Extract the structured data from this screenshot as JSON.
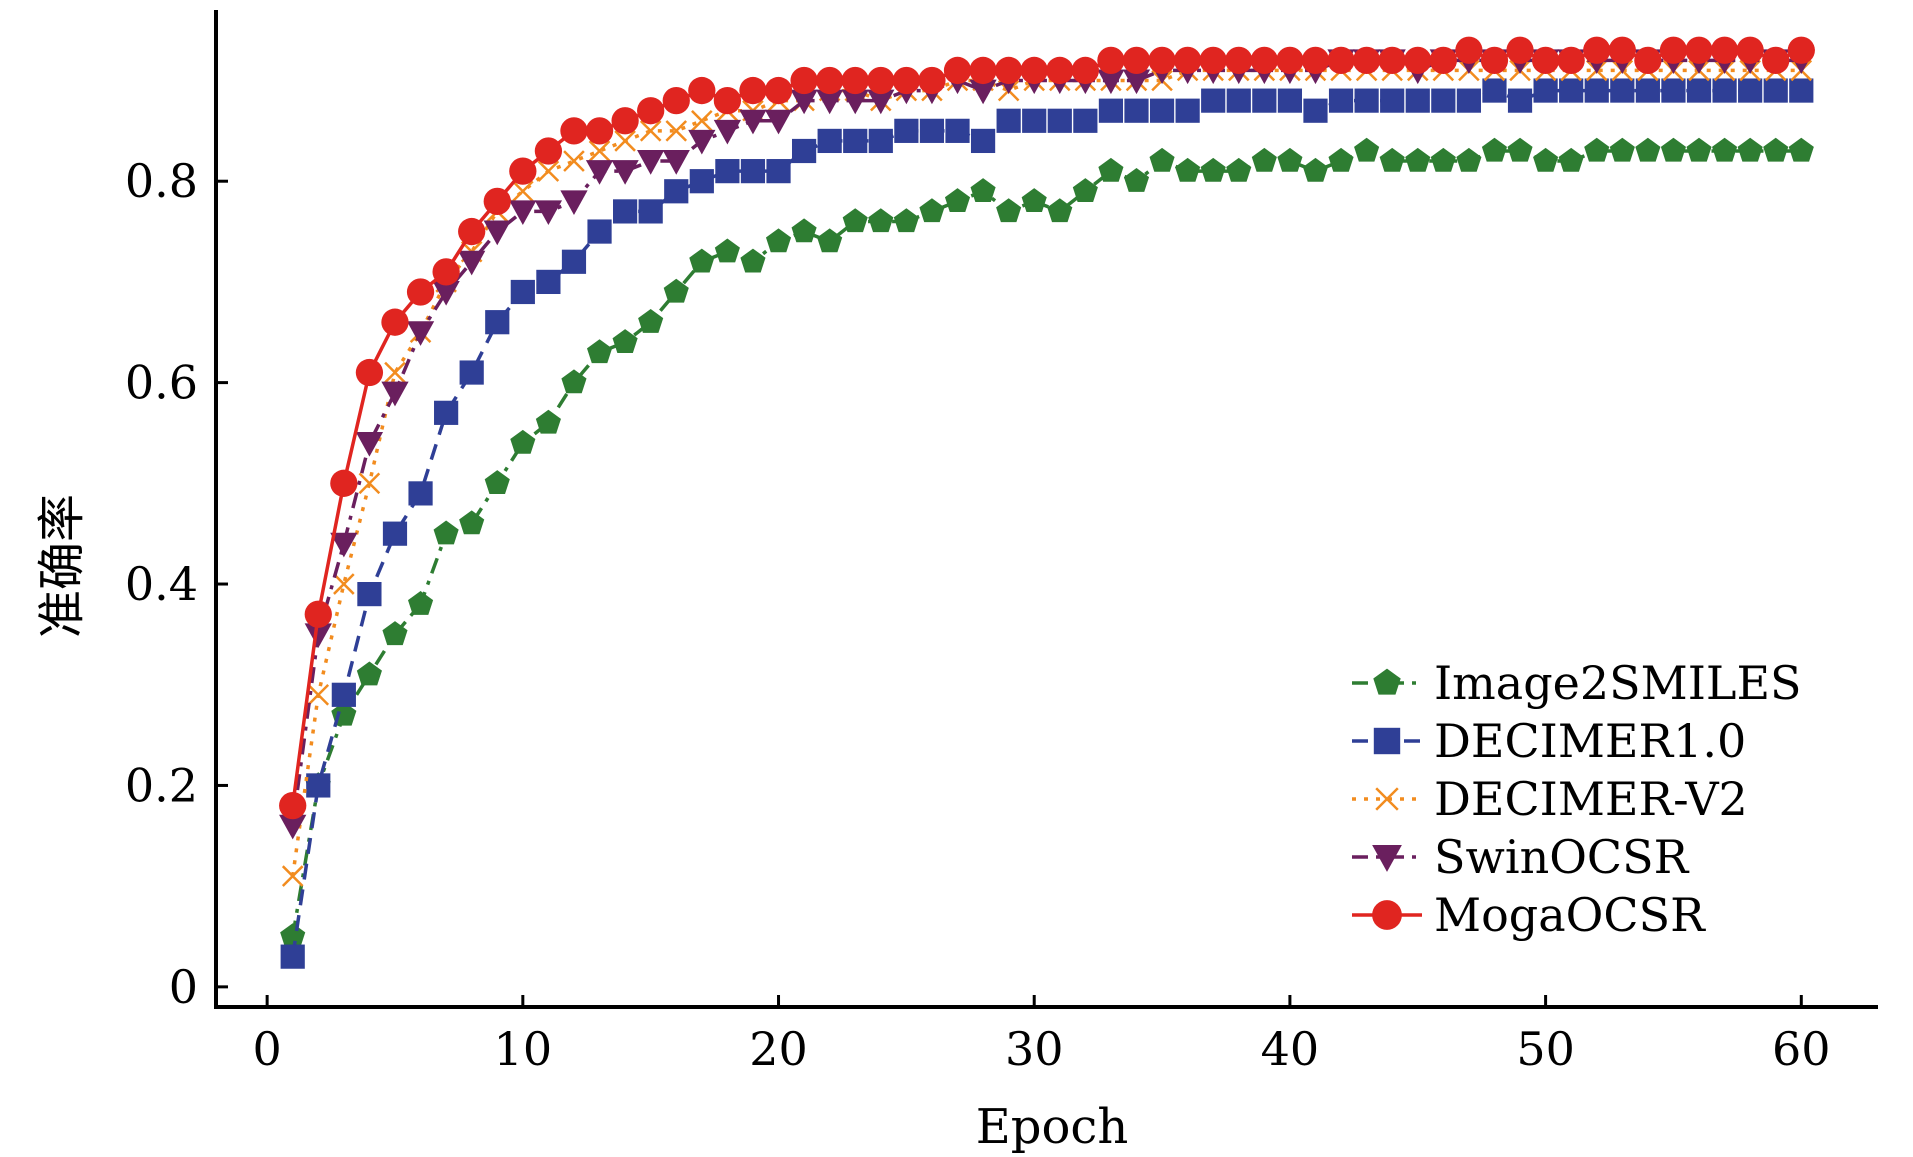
{
  "chart_data": {
    "type": "line",
    "title": "",
    "xlabel": "Epoch",
    "ylabel": "准确率",
    "xlim": [
      -2,
      63
    ],
    "ylim": [
      -0.02,
      0.97
    ],
    "xticks": [
      0,
      10,
      20,
      30,
      40,
      50,
      60
    ],
    "yticks": [
      0,
      0.2,
      0.4,
      0.6,
      0.8
    ],
    "ytick_labels": [
      "0",
      "0.2",
      "0.4",
      "0.6",
      "0.8"
    ],
    "grid": false,
    "legend_position": "bottom-right",
    "x": [
      1,
      2,
      3,
      4,
      5,
      6,
      7,
      8,
      9,
      10,
      11,
      12,
      13,
      14,
      15,
      16,
      17,
      18,
      19,
      20,
      21,
      22,
      23,
      24,
      25,
      26,
      27,
      28,
      29,
      30,
      31,
      32,
      33,
      34,
      35,
      36,
      37,
      38,
      39,
      40,
      41,
      42,
      43,
      44,
      45,
      46,
      47,
      48,
      49,
      50,
      51,
      52,
      53,
      54,
      55,
      56,
      57,
      58,
      59,
      60
    ],
    "series": [
      {
        "name": "Image2SMILES",
        "color": "#2e7d32",
        "dash": "dashdot",
        "marker": "pentagon",
        "values": [
          0.05,
          0.2,
          0.27,
          0.31,
          0.35,
          0.38,
          0.45,
          0.46,
          0.5,
          0.54,
          0.56,
          0.6,
          0.63,
          0.64,
          0.66,
          0.69,
          0.72,
          0.73,
          0.72,
          0.74,
          0.75,
          0.74,
          0.76,
          0.76,
          0.76,
          0.77,
          0.78,
          0.79,
          0.77,
          0.78,
          0.77,
          0.79,
          0.81,
          0.8,
          0.82,
          0.81,
          0.81,
          0.81,
          0.82,
          0.82,
          0.81,
          0.82,
          0.83,
          0.82,
          0.82,
          0.82,
          0.82,
          0.83,
          0.83,
          0.82,
          0.82,
          0.83,
          0.83,
          0.83,
          0.83,
          0.83,
          0.83,
          0.83,
          0.83,
          0.83
        ]
      },
      {
        "name": "DECIMER1.0",
        "color": "#2f3f96",
        "dash": "dashed",
        "marker": "square",
        "values": [
          0.03,
          0.2,
          0.29,
          0.39,
          0.45,
          0.49,
          0.57,
          0.61,
          0.66,
          0.69,
          0.7,
          0.72,
          0.75,
          0.77,
          0.77,
          0.79,
          0.8,
          0.81,
          0.81,
          0.81,
          0.83,
          0.84,
          0.84,
          0.84,
          0.85,
          0.85,
          0.85,
          0.84,
          0.86,
          0.86,
          0.86,
          0.86,
          0.87,
          0.87,
          0.87,
          0.87,
          0.88,
          0.88,
          0.88,
          0.88,
          0.87,
          0.88,
          0.88,
          0.88,
          0.88,
          0.88,
          0.88,
          0.89,
          0.88,
          0.89,
          0.89,
          0.89,
          0.89,
          0.89,
          0.89,
          0.89,
          0.89,
          0.89,
          0.89,
          0.89
        ]
      },
      {
        "name": "DECIMER-V2",
        "color": "#f28c1f",
        "dash": "dotted",
        "marker": "x",
        "values": [
          0.11,
          0.29,
          0.4,
          0.5,
          0.61,
          0.65,
          0.7,
          0.73,
          0.77,
          0.79,
          0.81,
          0.82,
          0.83,
          0.84,
          0.85,
          0.85,
          0.86,
          0.87,
          0.87,
          0.88,
          0.88,
          0.89,
          0.89,
          0.88,
          0.89,
          0.89,
          0.9,
          0.9,
          0.89,
          0.9,
          0.9,
          0.9,
          0.9,
          0.9,
          0.9,
          0.91,
          0.91,
          0.91,
          0.91,
          0.91,
          0.91,
          0.91,
          0.91,
          0.91,
          0.91,
          0.91,
          0.91,
          0.91,
          0.91,
          0.91,
          0.91,
          0.91,
          0.91,
          0.91,
          0.91,
          0.91,
          0.91,
          0.91,
          0.91,
          0.91
        ]
      },
      {
        "name": "SwinOCSR",
        "color": "#6a1f5e",
        "dash": "dashdot",
        "marker": "triangle-down",
        "values": [
          0.16,
          0.35,
          0.44,
          0.54,
          0.59,
          0.65,
          0.69,
          0.72,
          0.75,
          0.77,
          0.77,
          0.78,
          0.81,
          0.81,
          0.82,
          0.82,
          0.84,
          0.85,
          0.86,
          0.86,
          0.88,
          0.88,
          0.88,
          0.88,
          0.89,
          0.89,
          0.9,
          0.89,
          0.9,
          0.9,
          0.9,
          0.9,
          0.9,
          0.9,
          0.91,
          0.91,
          0.91,
          0.91,
          0.91,
          0.91,
          0.91,
          0.92,
          0.92,
          0.92,
          0.91,
          0.92,
          0.92,
          0.92,
          0.92,
          0.92,
          0.92,
          0.92,
          0.92,
          0.92,
          0.92,
          0.92,
          0.92,
          0.92,
          0.92,
          0.92
        ]
      },
      {
        "name": "MogaOCSR",
        "color": "#e02520",
        "dash": "solid",
        "marker": "circle",
        "values": [
          0.18,
          0.37,
          0.5,
          0.61,
          0.66,
          0.69,
          0.71,
          0.75,
          0.78,
          0.81,
          0.83,
          0.85,
          0.85,
          0.86,
          0.87,
          0.88,
          0.89,
          0.88,
          0.89,
          0.89,
          0.9,
          0.9,
          0.9,
          0.9,
          0.9,
          0.9,
          0.91,
          0.91,
          0.91,
          0.91,
          0.91,
          0.91,
          0.92,
          0.92,
          0.92,
          0.92,
          0.92,
          0.92,
          0.92,
          0.92,
          0.92,
          0.92,
          0.92,
          0.92,
          0.92,
          0.92,
          0.93,
          0.92,
          0.93,
          0.92,
          0.92,
          0.93,
          0.93,
          0.92,
          0.93,
          0.93,
          0.93,
          0.93,
          0.92,
          0.93
        ]
      }
    ]
  }
}
